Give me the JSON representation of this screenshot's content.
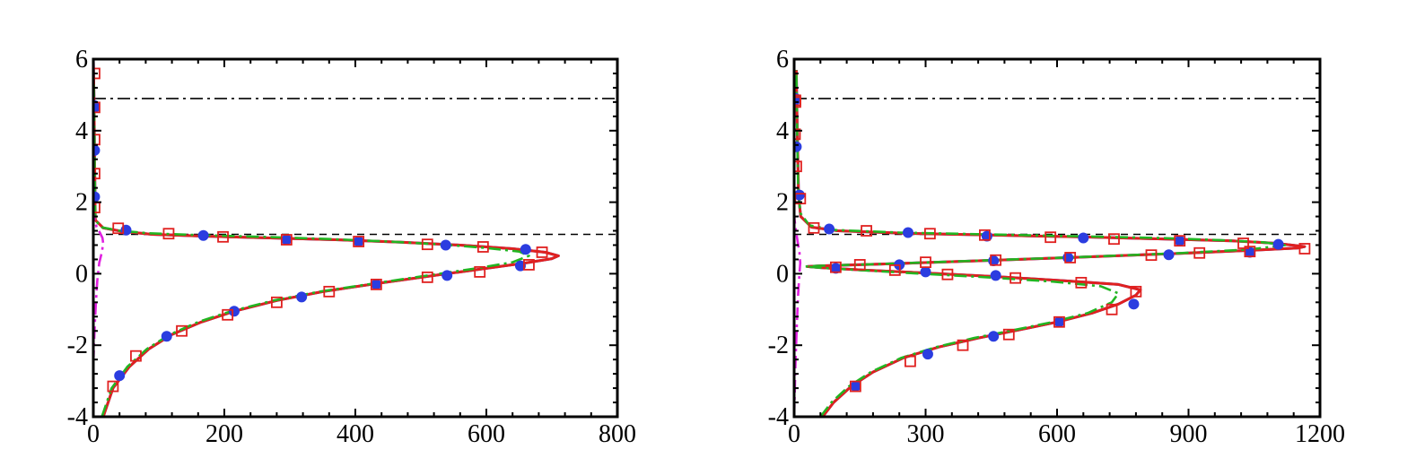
{
  "chart_data": [
    {
      "type": "line",
      "panel": "left",
      "title": "",
      "xlabel": "",
      "ylabel": "",
      "xlim": [
        0,
        800
      ],
      "ylim": [
        -4,
        6
      ],
      "xticks": [
        0,
        200,
        400,
        600,
        800
      ],
      "xtick_labels": [
        "0",
        "200",
        "400",
        "600",
        "800"
      ],
      "yticks": [
        -4,
        -2,
        0,
        2,
        4,
        6
      ],
      "ytick_labels": [
        "-4",
        "-2",
        "0",
        "2",
        "4",
        "6"
      ],
      "grid": false,
      "hlines": [
        {
          "y": 4.9,
          "style": "dash-dot",
          "color": "#000000"
        },
        {
          "y": 1.1,
          "style": "dashed",
          "color": "#000000"
        }
      ],
      "series": [
        {
          "name": "solid-blue",
          "style": "solid",
          "color": "#2b3de0",
          "x": [
            15,
            30,
            55,
            85,
            120,
            165,
            215,
            280,
            350,
            430,
            520,
            600,
            660,
            700,
            710,
            690,
            640,
            560,
            470,
            370,
            270,
            170,
            90,
            45,
            15,
            3,
            2,
            1,
            0
          ],
          "y": [
            -4,
            -3.2,
            -2.6,
            -2.1,
            -1.7,
            -1.35,
            -1.05,
            -0.75,
            -0.5,
            -0.28,
            -0.05,
            0.15,
            0.3,
            0.42,
            0.5,
            0.6,
            0.7,
            0.8,
            0.88,
            0.95,
            1.0,
            1.05,
            1.1,
            1.18,
            1.28,
            1.5,
            3,
            5,
            6
          ]
        },
        {
          "name": "solid-red",
          "style": "solid",
          "color": "#e0201f",
          "x": [
            15,
            30,
            55,
            85,
            120,
            165,
            215,
            280,
            350,
            430,
            520,
            600,
            660,
            700,
            710,
            690,
            640,
            560,
            470,
            370,
            270,
            170,
            90,
            45,
            15,
            3,
            2,
            1,
            0
          ],
          "y": [
            -4,
            -3.2,
            -2.6,
            -2.1,
            -1.7,
            -1.35,
            -1.05,
            -0.75,
            -0.5,
            -0.28,
            -0.05,
            0.15,
            0.3,
            0.42,
            0.5,
            0.6,
            0.7,
            0.8,
            0.88,
            0.95,
            1.0,
            1.05,
            1.1,
            1.18,
            1.28,
            1.5,
            3,
            5,
            6
          ]
        },
        {
          "name": "dashdot-green",
          "style": "dash-dot",
          "color": "#22b522",
          "x": [
            13,
            28,
            52,
            82,
            117,
            160,
            210,
            275,
            345,
            425,
            510,
            585,
            640,
            665,
            650,
            600,
            530,
            450,
            360,
            260,
            160,
            85,
            40,
            12,
            3,
            2,
            1,
            0
          ],
          "y": [
            -4,
            -3.2,
            -2.6,
            -2.1,
            -1.7,
            -1.35,
            -1.05,
            -0.75,
            -0.5,
            -0.28,
            -0.05,
            0.15,
            0.32,
            0.5,
            0.62,
            0.72,
            0.82,
            0.9,
            0.97,
            1.03,
            1.08,
            1.13,
            1.2,
            1.3,
            1.5,
            3,
            5,
            6
          ]
        },
        {
          "name": "dashdot-magenta",
          "style": "dash-dot",
          "color": "#e020e0",
          "x": [
            0,
            2,
            4,
            6,
            9,
            13,
            15,
            14,
            10,
            5,
            2,
            0
          ],
          "y": [
            -2.5,
            -1.5,
            -0.8,
            -0.2,
            0.3,
            0.6,
            0.85,
            1.0,
            1.15,
            1.3,
            1.5,
            1.7
          ]
        }
      ],
      "markers": [
        {
          "name": "blue-circles",
          "shape": "filled-circle",
          "color": "#2b3de0",
          "x": [
            40,
            112,
            215,
            318,
            432,
            540,
            652,
            538,
            660,
            405,
            295,
            168,
            50,
            2,
            2,
            2,
            2
          ],
          "y": [
            -2.85,
            -1.75,
            -1.05,
            -0.65,
            -0.3,
            -0.05,
            0.22,
            0.8,
            0.68,
            0.9,
            0.95,
            1.07,
            1.22,
            2.15,
            3.45,
            4.7,
            4.65
          ]
        },
        {
          "name": "red-squares",
          "shape": "open-square",
          "color": "#e0201f",
          "x": [
            30,
            65,
            135,
            205,
            280,
            360,
            432,
            510,
            590,
            665,
            685,
            595,
            510,
            405,
            295,
            198,
            115,
            38,
            2,
            2,
            2,
            2,
            2
          ],
          "y": [
            -3.15,
            -2.3,
            -1.6,
            -1.15,
            -0.8,
            -0.5,
            -0.3,
            -0.1,
            0.05,
            0.25,
            0.6,
            0.75,
            0.82,
            0.9,
            0.95,
            1.03,
            1.12,
            1.27,
            1.85,
            2.8,
            3.75,
            4.65,
            5.6
          ]
        }
      ]
    },
    {
      "type": "line",
      "panel": "right",
      "title": "",
      "xlabel": "",
      "ylabel": "",
      "xlim": [
        0,
        1200
      ],
      "ylim": [
        -4,
        6
      ],
      "xticks": [
        0,
        300,
        600,
        900,
        1200
      ],
      "xtick_labels": [
        "0",
        "300",
        "600",
        "900",
        "1200"
      ],
      "yticks": [
        -4,
        -2,
        0,
        2,
        4,
        6
      ],
      "ytick_labels": [
        "-4",
        "-2",
        "0",
        "2",
        "4",
        "6"
      ],
      "grid": false,
      "hlines": [
        {
          "y": 4.9,
          "style": "dash-dot",
          "color": "#000000"
        },
        {
          "y": 1.1,
          "style": "dashed",
          "color": "#000000"
        }
      ],
      "series": [
        {
          "name": "solid-blue",
          "style": "solid",
          "color": "#2b3de0",
          "x": [
            65,
            90,
            130,
            180,
            250,
            330,
            420,
            510,
            600,
            680,
            740,
            780,
            790,
            740,
            620,
            460,
            300,
            160,
            60,
            30,
            60,
            200,
            420,
            650,
            880,
            1050,
            1150,
            1165,
            1100,
            1000,
            850,
            650,
            450,
            250,
            100,
            40,
            15,
            10,
            8,
            6,
            5
          ],
          "y": [
            -4,
            -3.6,
            -3.15,
            -2.75,
            -2.35,
            -2.05,
            -1.8,
            -1.58,
            -1.35,
            -1.1,
            -0.85,
            -0.6,
            -0.45,
            -0.3,
            -0.2,
            -0.08,
            0.02,
            0.1,
            0.17,
            0.2,
            0.22,
            0.27,
            0.36,
            0.46,
            0.57,
            0.66,
            0.72,
            0.76,
            0.85,
            0.92,
            0.97,
            1.03,
            1.08,
            1.13,
            1.2,
            1.3,
            1.6,
            2.2,
            3.5,
            4.8,
            5.7
          ]
        },
        {
          "name": "solid-red",
          "style": "solid",
          "color": "#e0201f",
          "x": [
            65,
            90,
            130,
            180,
            250,
            330,
            420,
            510,
            600,
            680,
            740,
            780,
            790,
            740,
            620,
            460,
            300,
            160,
            60,
            30,
            60,
            200,
            420,
            650,
            880,
            1050,
            1150,
            1165,
            1100,
            1000,
            850,
            650,
            450,
            250,
            100,
            40,
            15,
            10,
            8,
            6,
            5
          ],
          "y": [
            -4,
            -3.6,
            -3.15,
            -2.75,
            -2.35,
            -2.05,
            -1.8,
            -1.58,
            -1.35,
            -1.1,
            -0.85,
            -0.6,
            -0.45,
            -0.3,
            -0.2,
            -0.08,
            0.02,
            0.1,
            0.17,
            0.2,
            0.22,
            0.27,
            0.36,
            0.46,
            0.57,
            0.66,
            0.72,
            0.76,
            0.85,
            0.92,
            0.97,
            1.03,
            1.08,
            1.13,
            1.2,
            1.3,
            1.6,
            2.2,
            3.5,
            4.8,
            5.7
          ]
        },
        {
          "name": "dashdot-green",
          "style": "dash-dot",
          "color": "#22b522",
          "x": [
            60,
            85,
            125,
            175,
            245,
            325,
            410,
            500,
            590,
            670,
            725,
            740,
            700,
            590,
            440,
            290,
            150,
            55,
            25,
            55,
            195,
            410,
            640,
            870,
            1040,
            1120,
            1070,
            970,
            830,
            630,
            440,
            240,
            95,
            35,
            14,
            9,
            7,
            6,
            5
          ],
          "y": [
            -4,
            -3.6,
            -3.15,
            -2.75,
            -2.35,
            -2.05,
            -1.8,
            -1.58,
            -1.35,
            -1.1,
            -0.8,
            -0.55,
            -0.35,
            -0.22,
            -0.1,
            0.0,
            0.1,
            0.17,
            0.2,
            0.22,
            0.27,
            0.36,
            0.46,
            0.57,
            0.68,
            0.8,
            0.88,
            0.94,
            1.0,
            1.05,
            1.1,
            1.15,
            1.22,
            1.35,
            1.7,
            2.5,
            3.8,
            5.0,
            5.7
          ]
        },
        {
          "name": "dashdot-magenta",
          "style": "dash-dot",
          "color": "#e020e0",
          "x": [
            0,
            3,
            6,
            9,
            12,
            14,
            12,
            8,
            4,
            1,
            0
          ],
          "y": [
            -4,
            -2.5,
            -1.5,
            -0.6,
            0,
            0.3,
            0.6,
            0.9,
            1.2,
            1.5,
            1.7
          ]
        }
      ],
      "markers": [
        {
          "name": "blue-circles",
          "shape": "filled-circle",
          "color": "#2b3de0",
          "x": [
            140,
            305,
            455,
            775,
            605,
            460,
            300,
            95,
            240,
            455,
            625,
            855,
            1105,
            1040,
            880,
            660,
            440,
            260,
            80,
            12,
            5,
            2,
            3
          ],
          "y": [
            -3.15,
            -2.25,
            -1.75,
            -0.85,
            -1.35,
            -0.05,
            0.05,
            0.15,
            0.25,
            0.36,
            0.45,
            0.53,
            0.82,
            0.6,
            0.92,
            1.0,
            1.05,
            1.15,
            1.25,
            2.2,
            3.55,
            4.85,
            4.9
          ]
        },
        {
          "name": "red-squares",
          "shape": "open-square",
          "color": "#e0201f",
          "x": [
            140,
            265,
            385,
            490,
            605,
            725,
            780,
            655,
            505,
            350,
            230,
            95,
            150,
            300,
            460,
            630,
            815,
            925,
            1040,
            1165,
            1025,
            880,
            730,
            585,
            435,
            310,
            165,
            45,
            14,
            5,
            2,
            3,
            3
          ],
          "y": [
            -3.15,
            -2.45,
            -2.0,
            -1.7,
            -1.35,
            -1.0,
            -0.5,
            -0.25,
            -0.12,
            -0.02,
            0.1,
            0.18,
            0.25,
            0.32,
            0.38,
            0.45,
            0.52,
            0.58,
            0.62,
            0.7,
            0.85,
            0.92,
            0.97,
            1.02,
            1.08,
            1.12,
            1.2,
            1.28,
            2.1,
            3.0,
            3.9,
            4.8,
            4.85
          ]
        }
      ]
    }
  ]
}
